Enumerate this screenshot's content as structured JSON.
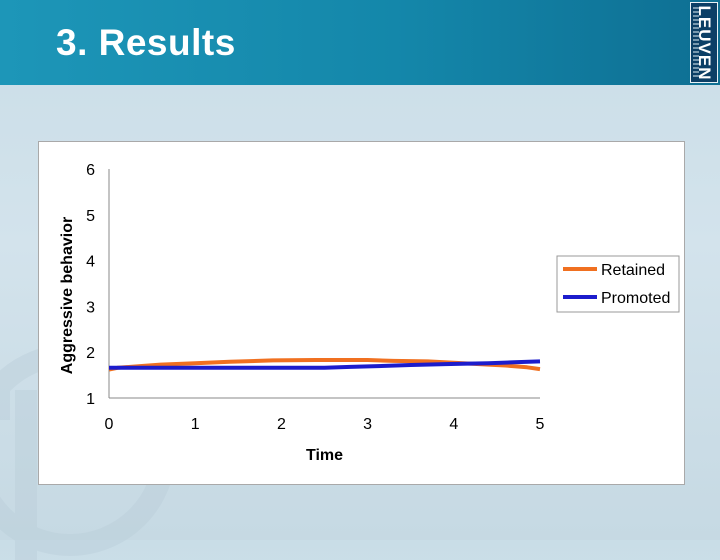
{
  "header": {
    "title": "3. Results",
    "logo_text": "LEUVEN"
  },
  "chart_data": {
    "type": "line",
    "xlabel": "Time",
    "ylabel": "Aggressive behavior",
    "xlim": [
      0,
      5
    ],
    "ylim": [
      1,
      6
    ],
    "x_ticks": [
      "0",
      "1",
      "2",
      "3",
      "4",
      "5"
    ],
    "y_ticks": [
      "1",
      "2",
      "3",
      "4",
      "5",
      "6"
    ],
    "grid": false,
    "legend_position": "right",
    "series": [
      {
        "name": "Retained",
        "color": "#f07020",
        "x": [
          0,
          0.1,
          0.4,
          0.6,
          1.0,
          1.4,
          1.9,
          2.4,
          3.0,
          3.3,
          3.7,
          4.0,
          4.4,
          4.6,
          4.85,
          5.0
        ],
        "y": [
          1.62,
          1.66,
          1.7,
          1.73,
          1.76,
          1.79,
          1.82,
          1.83,
          1.83,
          1.81,
          1.8,
          1.77,
          1.73,
          1.71,
          1.67,
          1.63
        ]
      },
      {
        "name": "Promoted",
        "color": "#1c1ccc",
        "x": [
          0,
          0.5,
          1.0,
          1.5,
          2.0,
          2.5,
          2.8,
          3.2,
          3.5,
          3.9,
          4.1,
          4.4,
          4.7,
          5.0
        ],
        "y": [
          1.66,
          1.66,
          1.66,
          1.66,
          1.66,
          1.66,
          1.68,
          1.7,
          1.72,
          1.74,
          1.75,
          1.76,
          1.78,
          1.8
        ]
      }
    ]
  }
}
